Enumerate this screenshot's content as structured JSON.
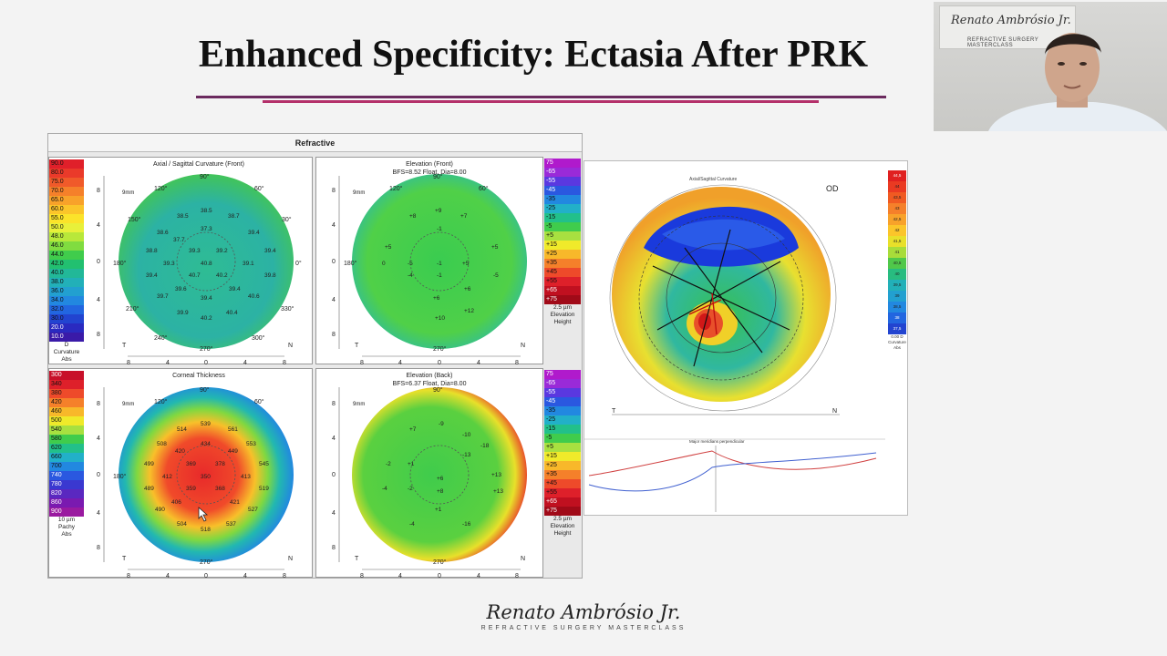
{
  "slide": {
    "title": "Enhanced Specificity: Ectasia After PRK"
  },
  "webcam": {
    "sign_name": "Renato Ambrósio Jr.",
    "sign_sub": "REFRACTIVE SURGERY MASTERCLASS"
  },
  "pentacam": {
    "header": "Refractive",
    "panels": [
      {
        "title": "Axial / Sagittal Curvature (Front)",
        "subtitle": "",
        "scale_unit_1": "D",
        "scale_unit_2": "Curvature",
        "scale_unit_3": "Abs",
        "scale": [
          "90.0",
          "80.0",
          "75.0",
          "70.0",
          "65.0",
          "60.0",
          "55.0",
          "50.0",
          "48.0",
          "46.0",
          "44.0",
          "42.0",
          "40.0",
          "38.0",
          "36.0",
          "34.0",
          "32.0",
          "30.0",
          "20.0",
          "10.0"
        ],
        "values": [
          "38.5",
          "38.7",
          "38.5",
          "37.3",
          "38.6",
          "37.7",
          "39.4",
          "38.8",
          "39.3",
          "39.2",
          "39.3",
          "39.4",
          "39.1",
          "40.8",
          "39.4",
          "40.7",
          "40.2",
          "39.8",
          "39.6",
          "39.4",
          "40.6",
          "39.7",
          "39.4",
          "39.9",
          "40.2",
          "40.4"
        ]
      },
      {
        "title": "Elevation (Front)",
        "subtitle": "BFS=8.52 Float, Dia=8.00",
        "scale_unit_1": "2.5 µm",
        "scale_unit_2": "Elevation",
        "scale_unit_3": "Height",
        "scale": [
          "75",
          "-65",
          "-55",
          "-45",
          "-35",
          "-25",
          "-15",
          "-5",
          "+5",
          "+15",
          "+25",
          "+35",
          "+45",
          "+55",
          "+65",
          "+75"
        ],
        "values": [
          "+9",
          "+7",
          "+8",
          "+5",
          "-1",
          "+5",
          "0",
          "-5",
          "-1",
          "+5",
          "-4",
          "-1",
          "-5",
          "+6",
          "+6",
          "+12",
          "+10"
        ]
      },
      {
        "title": "Corneal Thickness",
        "subtitle": "",
        "scale_unit_1": "10 µm",
        "scale_unit_2": "Pachy",
        "scale_unit_3": "Abs",
        "scale": [
          "300",
          "340",
          "380",
          "420",
          "460",
          "500",
          "540",
          "580",
          "620",
          "660",
          "700",
          "740",
          "780",
          "820",
          "860",
          "900"
        ],
        "values": [
          "514",
          "539",
          "561",
          "553",
          "508",
          "420",
          "434",
          "449",
          "499",
          "369",
          "378",
          "545",
          "412",
          "350",
          "413",
          "489",
          "359",
          "368",
          "519",
          "406",
          "421",
          "490",
          "527",
          "504",
          "518",
          "537"
        ]
      },
      {
        "title": "Elevation (Back)",
        "subtitle": "BFS=6.37 Float, Dia=8.00",
        "scale_unit_1": "2.5 µm",
        "scale_unit_2": "Elevation",
        "scale_unit_3": "Height",
        "scale": [
          "75",
          "-65",
          "-55",
          "-45",
          "-35",
          "-25",
          "-15",
          "-5",
          "+5",
          "+15",
          "+25",
          "+35",
          "+45",
          "+55",
          "+65",
          "+75"
        ],
        "values": [
          "+7",
          "-9",
          "-10",
          "+13",
          "-2",
          "-13",
          "-18",
          "+1",
          "+6",
          "-2",
          "+8",
          "+13",
          "-4",
          "+1",
          "-16",
          "-4"
        ]
      }
    ],
    "axis_labels": {
      "deg_90": "90°",
      "deg_120": "120°",
      "deg_60": "60°",
      "deg_150": "150°",
      "deg_30": "30°",
      "deg_180": "180°",
      "deg_0": "0°",
      "deg_210": "210°",
      "deg_330": "330°",
      "deg_240": "240°",
      "deg_300": "300°",
      "deg_270": "270°",
      "temporal": "T",
      "nasal": "N",
      "zoom": "9mm",
      "x_ticks": [
        "8",
        "4",
        "0",
        "4",
        "8"
      ],
      "y_ticks": [
        "8",
        "4",
        "0",
        "4",
        "8"
      ]
    }
  },
  "right_map": {
    "title": "Axial/Sagittal Curvature",
    "eye": "OD",
    "temporal": "T",
    "nasal": "N",
    "scale": [
      "44,5",
      "44",
      "43,5",
      "43",
      "42,5",
      "42",
      "41,5",
      "41",
      "40,5",
      "40",
      "39,5",
      "39",
      "38,5",
      "38",
      "37,5"
    ],
    "scale_foot": [
      "0.00 D",
      "Curvature",
      "Abs"
    ],
    "profile_title": "Major meridians perpendicular"
  },
  "footer": {
    "name": "Renato Ambrósio Jr.",
    "sub": "REFRACTIVE SURGERY MASTERCLASS"
  },
  "colors": {
    "title_rule_dark": "#6b2a5e",
    "title_rule_light": "#b4306a"
  }
}
